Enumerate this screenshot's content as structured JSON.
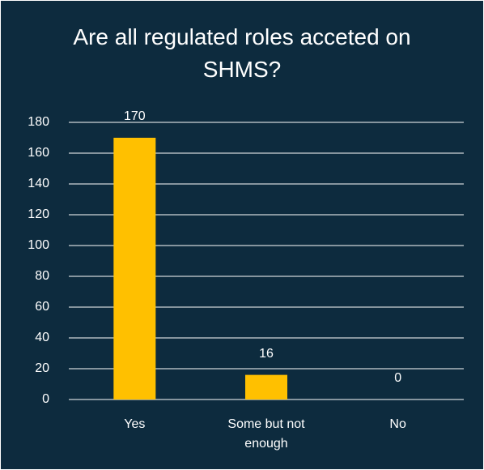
{
  "chart_data": {
    "type": "bar",
    "title": "Are all regulated roles acceted on SHMS?",
    "categories": [
      "Yes",
      "Some but not enough",
      "No"
    ],
    "values": [
      170,
      16,
      0
    ],
    "color": "#ffc000",
    "ylim": [
      0,
      180
    ],
    "yticks": [
      0,
      20,
      40,
      60,
      80,
      100,
      120,
      140,
      160,
      180
    ],
    "grid": true,
    "data_labels": true
  }
}
